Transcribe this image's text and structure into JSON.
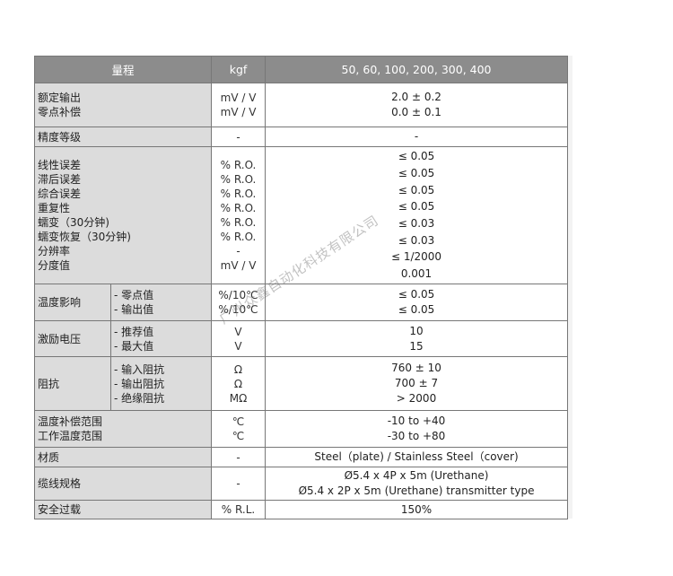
{
  "header": {
    "label": "量程",
    "unit": "kgf",
    "value": "50, 60, 100, 200, 300, 400"
  },
  "rows": [
    {
      "labels": [
        "额定输出",
        "零点补偿"
      ],
      "units": [
        "mV / V",
        "mV / V"
      ],
      "values": [
        "2.0 ± 0.2",
        "0.0 ± 0.1"
      ]
    },
    {
      "labels": [
        "精度等级"
      ],
      "units": [
        "-"
      ],
      "values": [
        "-"
      ]
    },
    {
      "labels": [
        "线性误差",
        "滞后误差",
        "综合误差",
        "重复性",
        "蠕变（30分钟)",
        "蠕变恢复（30分钟)",
        "分辨率",
        "分度值"
      ],
      "units": [
        "% R.O.",
        "% R.O.",
        "% R.O.",
        "% R.O.",
        "% R.O.",
        "% R.O.",
        "-",
        "mV / V"
      ],
      "values": [
        "≤ 0.05",
        "≤ 0.05",
        "≤ 0.05",
        "≤ 0.05",
        "≤ 0.03",
        "≤ 0.03",
        "≤ 1/2000",
        "0.001"
      ]
    },
    {
      "group": "温度影响",
      "labels": [
        "- 零点值",
        "- 输出值"
      ],
      "units": [
        "%/10℃",
        "%/10℃"
      ],
      "values": [
        "≤ 0.05",
        "≤ 0.05"
      ]
    },
    {
      "group": "激励电压",
      "labels": [
        "- 推荐值",
        "- 最大值"
      ],
      "units": [
        "V",
        "V"
      ],
      "values": [
        "10",
        "15"
      ]
    },
    {
      "group": "阻抗",
      "labels": [
        "- 输入阻抗",
        "- 输出阻抗",
        "- 绝缘阻抗"
      ],
      "units": [
        "Ω",
        "Ω",
        "MΩ"
      ],
      "values": [
        "760 ± 10",
        "700 ± 7",
        "> 2000"
      ]
    },
    {
      "labels": [
        "温度补偿范围",
        "工作温度范围"
      ],
      "units": [
        "℃",
        "℃"
      ],
      "values": [
        "-10 to +40",
        "-30 to +80"
      ]
    },
    {
      "labels": [
        "材质"
      ],
      "units": [
        "-"
      ],
      "values": [
        "Steel（plate) / Stainless Steel（cover)"
      ]
    },
    {
      "labels": [
        "缆线规格"
      ],
      "units": [
        "-"
      ],
      "values": [
        "Ø5.4 x 4P x 5m (Urethane)",
        "Ø5.4 x 2P x 5m (Urethane) transmitter type"
      ]
    },
    {
      "labels": [
        "安全过载"
      ],
      "units": [
        "% R.L."
      ],
      "values": [
        "150%"
      ]
    }
  ],
  "watermark": "广州众鑫自动化科技有限公司",
  "colors": {
    "header_bg": "#8c8c8c",
    "label_bg": "#dcdcdc",
    "border": "#777777"
  }
}
